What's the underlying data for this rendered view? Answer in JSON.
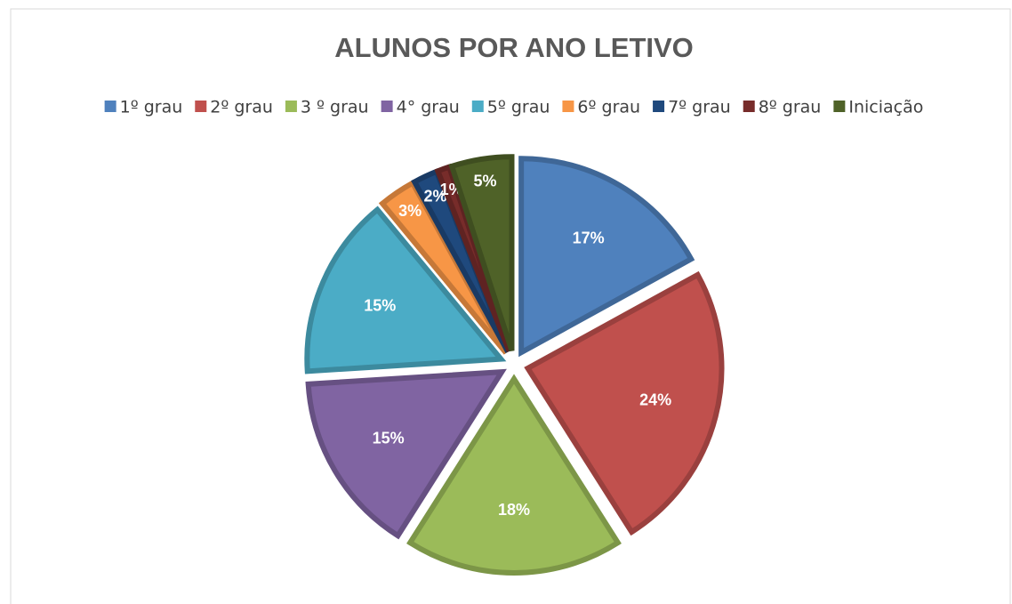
{
  "chart_data": {
    "type": "pie",
    "title": "ALUNOS POR ANO LETIVO",
    "categories": [
      "1º grau",
      "2º grau",
      "3 º grau",
      "4° grau",
      "5º grau",
      "6º grau",
      "7º grau",
      "8º grau",
      "Iniciação"
    ],
    "values": [
      17,
      24,
      18,
      15,
      15,
      3,
      2,
      1,
      5
    ],
    "value_labels": [
      "17%",
      "24%",
      "18%",
      "15%",
      "15%",
      "3%",
      "2%",
      "1%",
      "5%"
    ],
    "colors": [
      "#4f81bd",
      "#c0504d",
      "#9bbb59",
      "#8064a2",
      "#4bacc6",
      "#f79646",
      "#1f497d",
      "#772c2a",
      "#4f6228"
    ],
    "legend": "top"
  }
}
